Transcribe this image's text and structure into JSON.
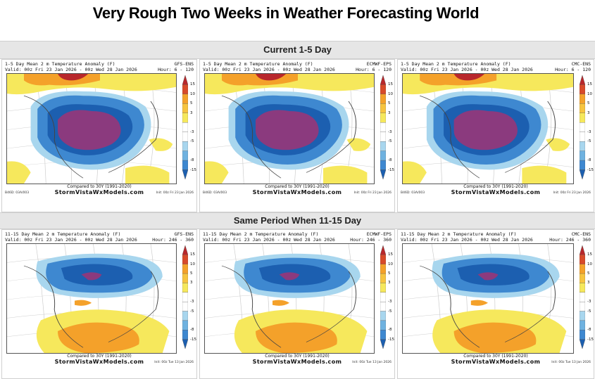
{
  "title": "Very Rough Two Weeks in Weather Forecasting World",
  "sections": {
    "current": "Current 1-5 Day",
    "same_period": "Same Period When 11-15 Day"
  },
  "colorbar_ticks": [
    "15",
    "10",
    "5",
    "3",
    "-3",
    "-5",
    "-8",
    "-15"
  ],
  "footer_compare": "Compared to 30Y (1991-2020)",
  "footer_site": "StormVistaWxModels.com",
  "colors": {
    "warm_dark": "#b8272b",
    "warm": "#f4a12a",
    "yellow": "#f6e85c",
    "cool_light": "#a8d6ee",
    "cool": "#3e88d0",
    "cool_dark": "#1c5fb0",
    "purple": "#8b3a7e"
  },
  "panels": [
    {
      "header": "1-5 Day Mean 2 m Temperature Anomaly (F)",
      "model": "GFS-ENS",
      "valid": "Valid: 00z Fri 23 Jan 2026 - 00z Wed 28 Jan 2026",
      "hour": "Hour: 6 - 120",
      "init": "Init: 00z Fri 23 Jan 2026",
      "left_small": "B46D: 03A/003"
    },
    {
      "header": "1-5 Day Mean 2 m Temperature Anomaly (F)",
      "model": "ECMWF-EPS",
      "valid": "Valid: 00z Fri 23 Jan 2026 - 00z Wed 28 Jan 2026",
      "hour": "Hour: 6 - 120",
      "init": "Init: 00z Fri 23 Jan 2026",
      "left_small": "B46D: 03A/003"
    },
    {
      "header": "1-5 Day Mean 2 m Temperature Anomaly (F)",
      "model": "CMC-ENS",
      "valid": "Valid: 00z Fri 23 Jan 2026 - 00z Wed 28 Jan 2026",
      "hour": "Hour: 6 - 120",
      "init": "Init: 00z Fri 23 Jan 2026",
      "left_small": "B46D: 03A/003"
    },
    {
      "header": "11-15 Day Mean 2 m Temperature Anomaly (F)",
      "model": "GFS-ENS",
      "valid": "Valid: 00z Fri 23 Jan 2026 - 00z Wed 28 Jan 2026",
      "hour": "Hour: 246 - 360",
      "init": "Init: 00z Tue 13 Jan 2026",
      "left_small": ""
    },
    {
      "header": "11-15 Day Mean 2 m Temperature Anomaly (F)",
      "model": "ECMWF-EPS",
      "valid": "Valid: 00z Fri 23 Jan 2026 - 00z Wed 28 Jan 2026",
      "hour": "Hour: 246 - 360",
      "init": "Init: 00z Tue 13 Jan 2026",
      "left_small": ""
    },
    {
      "header": "11-15 Day Mean 2 m Temperature Anomaly (F)",
      "model": "CMC-ENS",
      "valid": "Valid: 00z Fri 23 Jan 2026 - 00z Wed 28 Jan 2026",
      "hour": "Hour: 246 - 360",
      "init": "Init: 00z Tue 13 Jan 2026",
      "left_small": ""
    }
  ]
}
